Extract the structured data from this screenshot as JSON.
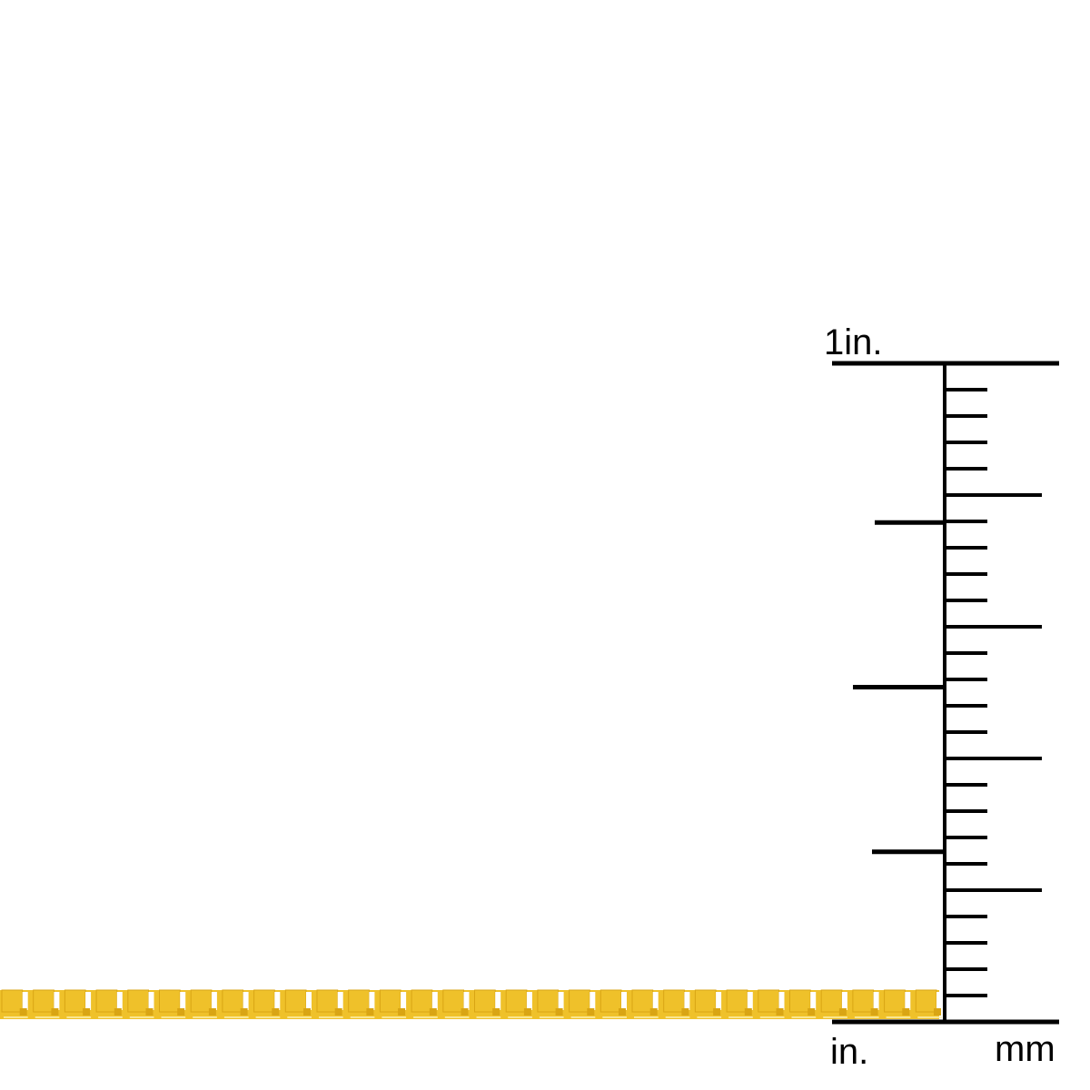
{
  "ruler": {
    "top_label": "1in.",
    "bottom_left_label": "in.",
    "bottom_right_label": "mm",
    "mm_count": 25,
    "inch_subdivisions": 4,
    "color": "#000000"
  },
  "chain": {
    "style": "box chain",
    "color": "#EFC12A",
    "shade_color": "#D9A514",
    "highlight_color": "#FFF3B0"
  }
}
